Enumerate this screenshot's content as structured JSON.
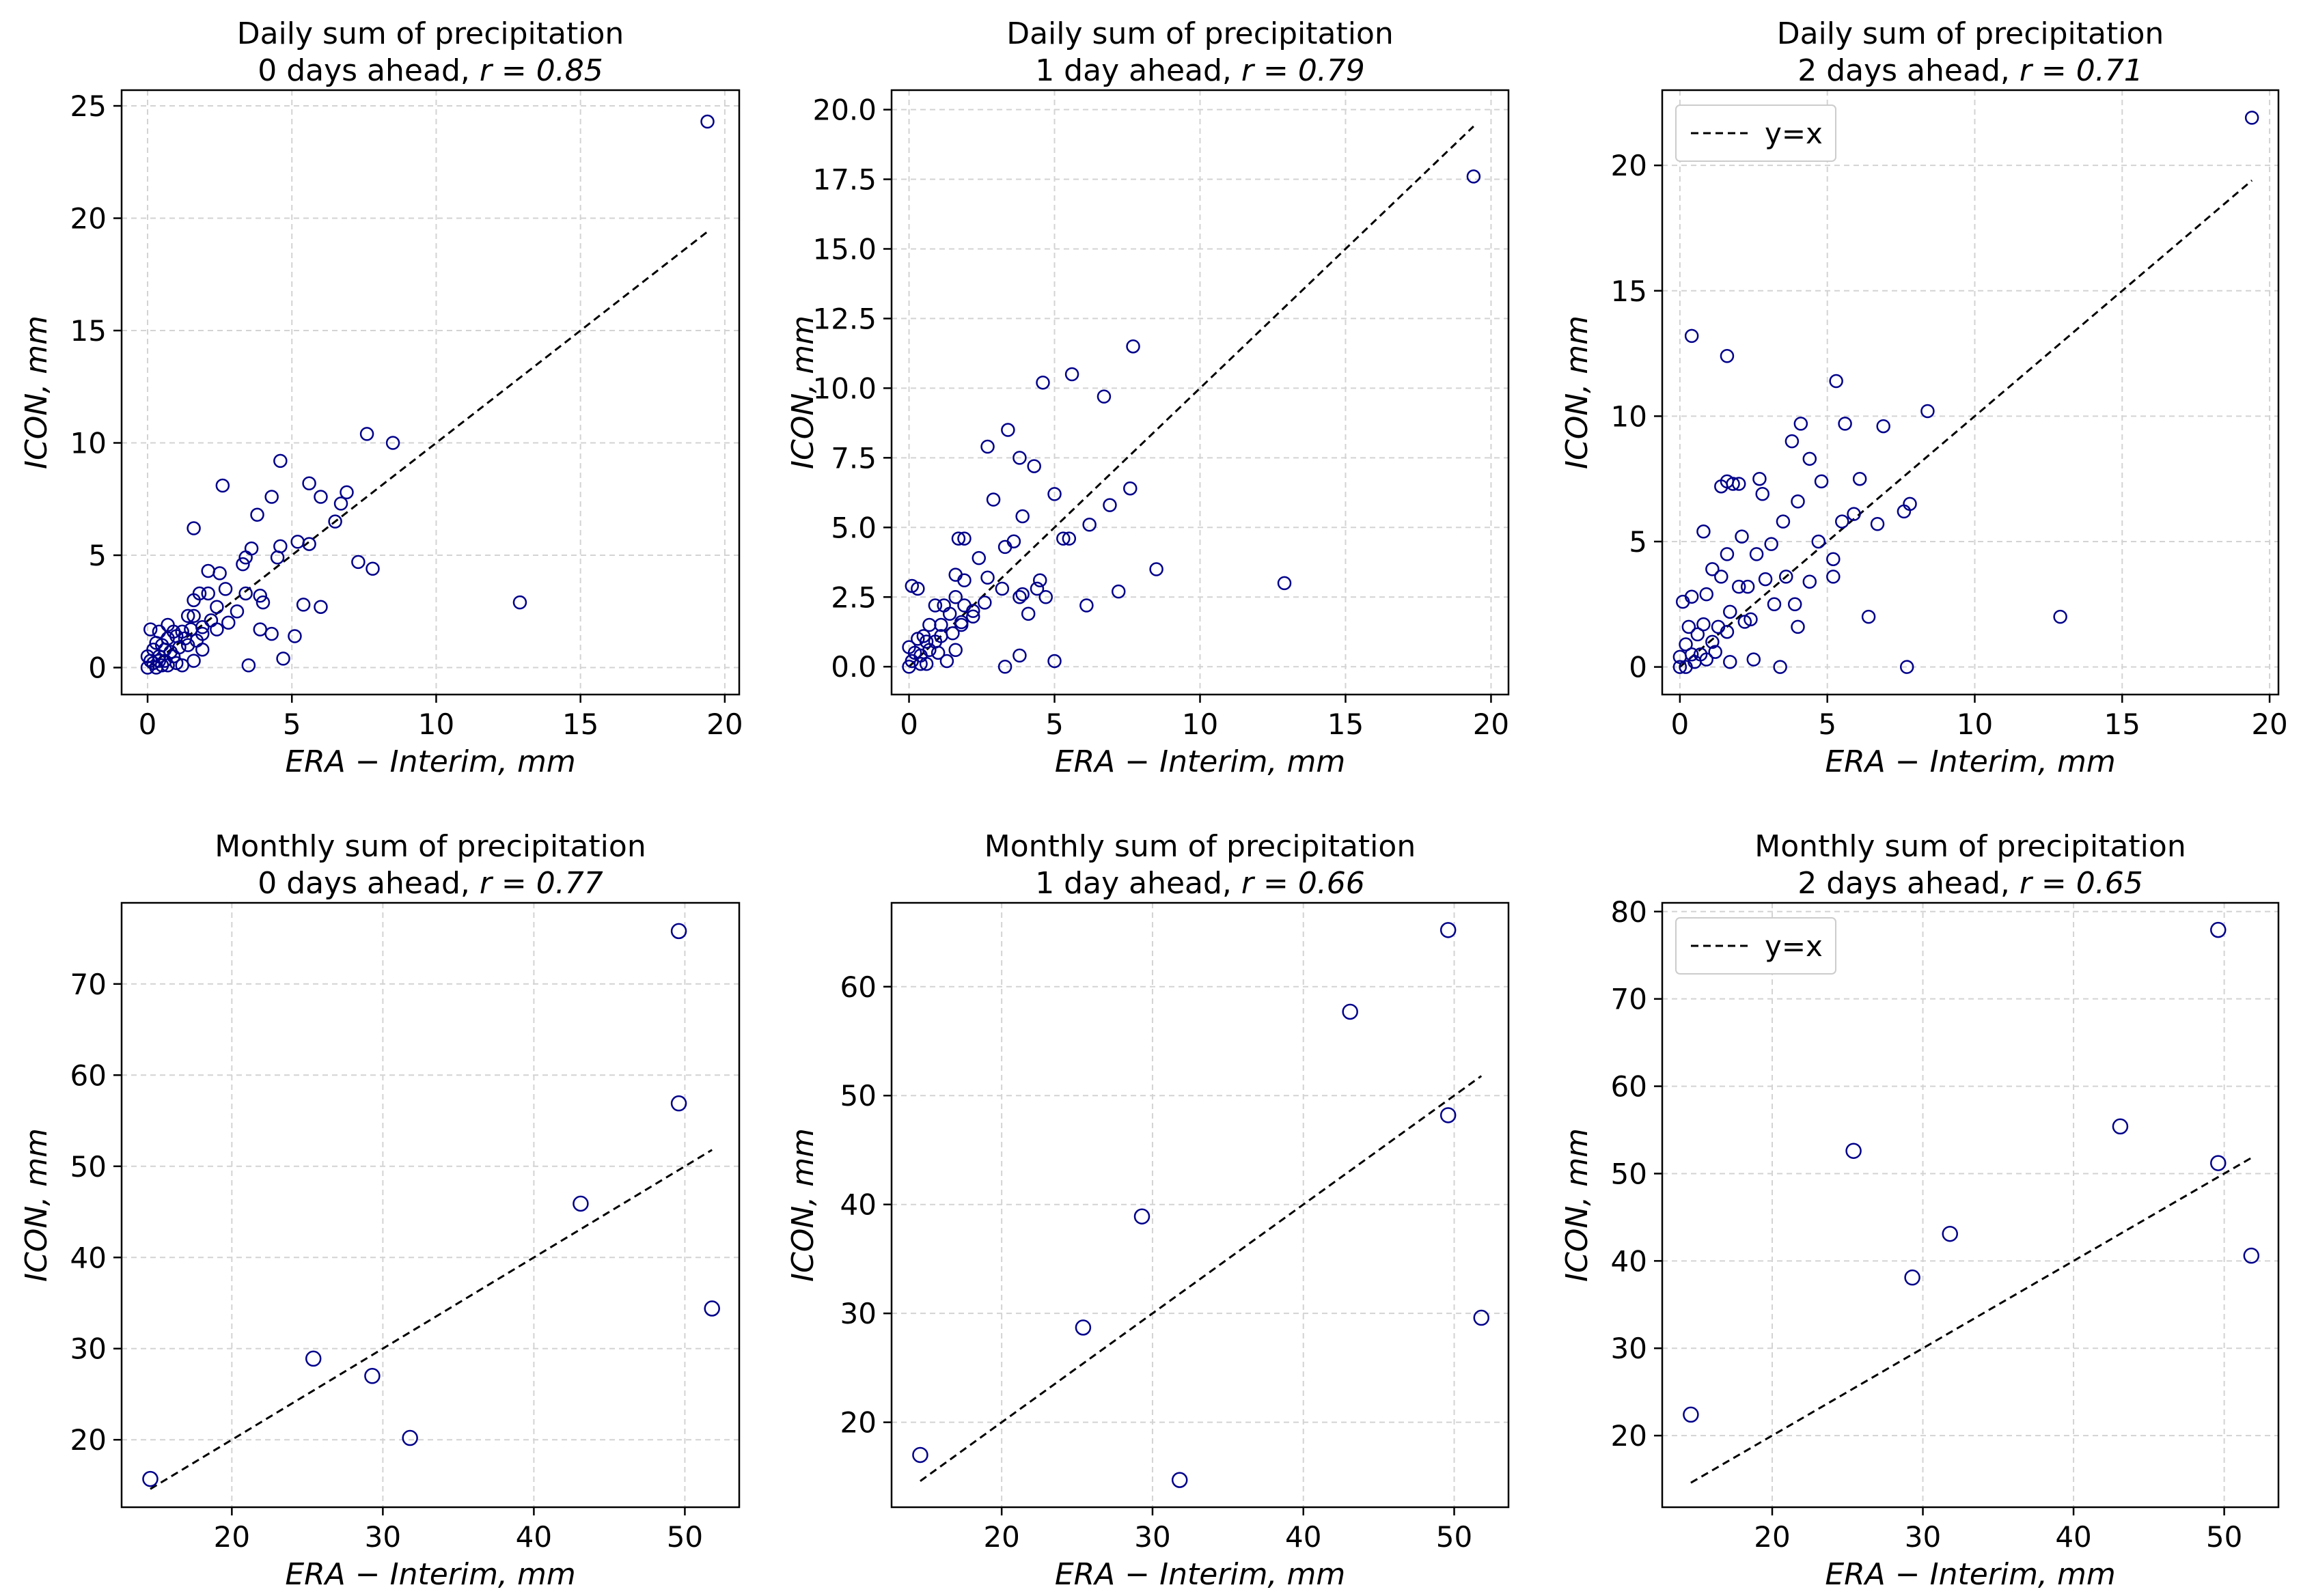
{
  "chart_data": [
    {
      "type": "scatter",
      "title": "Daily sum of precipitation",
      "subtitle": "0 days ahead, r = 0.85",
      "subtitle_prefix": "0 days ahead, ",
      "r_label": "r = 0.85",
      "xlabel": "ERA − Interim, mm",
      "ylabel": "ICON, mm",
      "xlim": [
        -0.9,
        20.5
      ],
      "ylim": [
        -1.2,
        25.7
      ],
      "xticks": [
        0,
        5,
        10,
        15,
        20
      ],
      "xtick_labels": [
        "0",
        "5",
        "10",
        "15",
        "20"
      ],
      "yticks": [
        0,
        5,
        10,
        15,
        20,
        25
      ],
      "ytick_labels": [
        "0",
        "5",
        "10",
        "15",
        "20",
        "25"
      ],
      "grid": true,
      "legend": null,
      "reference_line": {
        "label": "y=x",
        "x": [
          0,
          19.4
        ],
        "y": [
          0,
          19.4
        ]
      },
      "points": [
        [
          19.4,
          24.3
        ],
        [
          12.9,
          2.9
        ],
        [
          8.5,
          10.0
        ],
        [
          7.6,
          10.4
        ],
        [
          7.8,
          4.4
        ],
        [
          7.3,
          4.7
        ],
        [
          6.9,
          7.8
        ],
        [
          6.7,
          7.3
        ],
        [
          6.5,
          6.5
        ],
        [
          6.0,
          7.6
        ],
        [
          6.0,
          2.7
        ],
        [
          5.6,
          8.2
        ],
        [
          5.6,
          5.5
        ],
        [
          5.2,
          5.6
        ],
        [
          5.4,
          2.8
        ],
        [
          5.1,
          1.4
        ],
        [
          4.6,
          9.2
        ],
        [
          4.6,
          5.4
        ],
        [
          4.5,
          4.9
        ],
        [
          4.3,
          7.6
        ],
        [
          4.7,
          0.4
        ],
        [
          4.3,
          1.5
        ],
        [
          4.0,
          2.9
        ],
        [
          3.8,
          6.8
        ],
        [
          3.9,
          1.7
        ],
        [
          3.9,
          3.2
        ],
        [
          3.6,
          5.3
        ],
        [
          3.4,
          4.9
        ],
        [
          3.3,
          4.6
        ],
        [
          3.4,
          3.3
        ],
        [
          3.5,
          0.1
        ],
        [
          3.1,
          2.5
        ],
        [
          2.6,
          8.1
        ],
        [
          2.7,
          3.5
        ],
        [
          2.5,
          4.2
        ],
        [
          2.8,
          2.0
        ],
        [
          2.4,
          2.7
        ],
        [
          2.1,
          4.3
        ],
        [
          2.1,
          3.3
        ],
        [
          1.8,
          3.3
        ],
        [
          2.2,
          2.1
        ],
        [
          2.4,
          1.7
        ],
        [
          1.6,
          6.2
        ],
        [
          1.6,
          3.0
        ],
        [
          1.9,
          1.5
        ],
        [
          1.6,
          2.3
        ],
        [
          1.4,
          2.3
        ],
        [
          1.7,
          1.2
        ],
        [
          1.9,
          0.8
        ],
        [
          1.5,
          1.7
        ],
        [
          1.3,
          1.3
        ],
        [
          1.6,
          0.3
        ],
        [
          1.2,
          1.6
        ],
        [
          1.2,
          0.1
        ],
        [
          1.0,
          1.4
        ],
        [
          1.1,
          0.9
        ],
        [
          0.9,
          1.6
        ],
        [
          0.8,
          0.7
        ],
        [
          1.0,
          0.2
        ],
        [
          0.7,
          1.9
        ],
        [
          0.7,
          1.3
        ],
        [
          0.6,
          0.8
        ],
        [
          0.6,
          0.3
        ],
        [
          0.5,
          1.0
        ],
        [
          0.4,
          1.6
        ],
        [
          0.3,
          1.1
        ],
        [
          0.4,
          0.5
        ],
        [
          0.2,
          0.8
        ],
        [
          0.2,
          0.2
        ],
        [
          0.1,
          1.7
        ],
        [
          0.0,
          0.5
        ],
        [
          0.0,
          0.0
        ],
        [
          0.3,
          0.0
        ],
        [
          0.5,
          0.1
        ],
        [
          0.7,
          0.1
        ],
        [
          0.1,
          0.3
        ],
        [
          0.4,
          0.3
        ],
        [
          0.9,
          0.5
        ],
        [
          1.4,
          1.0
        ],
        [
          1.9,
          1.8
        ]
      ]
    },
    {
      "type": "scatter",
      "title": "Daily sum of precipitation",
      "subtitle": "1 day ahead, r = 0.79",
      "subtitle_prefix": "1 day ahead, ",
      "r_label": "r = 0.79",
      "xlabel": "ERA − Interim, mm",
      "ylabel": "ICON, mm",
      "xlim": [
        -0.6,
        20.6
      ],
      "ylim": [
        -1.0,
        20.7
      ],
      "xticks": [
        0,
        5,
        10,
        15,
        20
      ],
      "xtick_labels": [
        "0",
        "5",
        "10",
        "15",
        "20"
      ],
      "yticks": [
        0,
        2.5,
        5,
        7.5,
        10,
        12.5,
        15,
        17.5,
        20
      ],
      "ytick_labels": [
        "0.0",
        "2.5",
        "5.0",
        "7.5",
        "10.0",
        "12.5",
        "15.0",
        "17.5",
        "20.0"
      ],
      "grid": true,
      "legend": null,
      "reference_line": {
        "label": "y=x",
        "x": [
          0,
          19.4
        ],
        "y": [
          0,
          19.4
        ]
      },
      "points": [
        [
          19.4,
          17.6
        ],
        [
          12.9,
          3.0
        ],
        [
          8.5,
          3.5
        ],
        [
          7.7,
          11.5
        ],
        [
          7.6,
          6.4
        ],
        [
          7.2,
          2.7
        ],
        [
          6.9,
          5.8
        ],
        [
          6.7,
          9.7
        ],
        [
          6.2,
          5.1
        ],
        [
          6.1,
          2.2
        ],
        [
          5.6,
          10.5
        ],
        [
          5.5,
          4.6
        ],
        [
          5.3,
          4.6
        ],
        [
          5.0,
          6.2
        ],
        [
          5.0,
          0.2
        ],
        [
          4.6,
          10.2
        ],
        [
          4.7,
          2.5
        ],
        [
          4.5,
          3.1
        ],
        [
          4.4,
          2.8
        ],
        [
          4.3,
          7.2
        ],
        [
          4.1,
          1.9
        ],
        [
          3.9,
          5.4
        ],
        [
          3.8,
          7.5
        ],
        [
          3.9,
          2.6
        ],
        [
          3.8,
          2.5
        ],
        [
          3.8,
          0.4
        ],
        [
          3.4,
          8.5
        ],
        [
          3.6,
          4.5
        ],
        [
          3.3,
          4.3
        ],
        [
          3.2,
          2.8
        ],
        [
          3.3,
          0.0
        ],
        [
          2.9,
          6.0
        ],
        [
          2.7,
          7.9
        ],
        [
          2.7,
          3.2
        ],
        [
          2.6,
          2.3
        ],
        [
          2.4,
          3.9
        ],
        [
          2.2,
          2.0
        ],
        [
          1.9,
          4.6
        ],
        [
          1.7,
          4.6
        ],
        [
          1.9,
          3.1
        ],
        [
          1.9,
          2.2
        ],
        [
          1.6,
          3.3
        ],
        [
          1.6,
          2.5
        ],
        [
          1.8,
          1.6
        ],
        [
          1.6,
          0.6
        ],
        [
          1.4,
          1.9
        ],
        [
          1.5,
          1.2
        ],
        [
          1.3,
          0.2
        ],
        [
          1.2,
          2.2
        ],
        [
          1.1,
          1.1
        ],
        [
          1.0,
          0.5
        ],
        [
          0.9,
          2.2
        ],
        [
          0.9,
          0.9
        ],
        [
          0.7,
          1.5
        ],
        [
          0.7,
          0.6
        ],
        [
          0.6,
          0.1
        ],
        [
          0.5,
          1.1
        ],
        [
          0.4,
          0.4
        ],
        [
          0.3,
          2.8
        ],
        [
          0.3,
          1.0
        ],
        [
          0.2,
          0.5
        ],
        [
          0.1,
          2.9
        ],
        [
          0.1,
          0.2
        ],
        [
          0.0,
          0.7
        ],
        [
          0.0,
          0.0
        ],
        [
          0.4,
          0.1
        ],
        [
          0.6,
          0.9
        ],
        [
          1.1,
          1.5
        ],
        [
          1.8,
          1.5
        ],
        [
          2.2,
          1.8
        ]
      ]
    },
    {
      "type": "scatter",
      "title": "Daily sum of precipitation",
      "subtitle": "2 days ahead, r = 0.71",
      "subtitle_prefix": "2 days ahead, ",
      "r_label": "r = 0.71",
      "xlabel": "ERA − Interim, mm",
      "ylabel": "ICON, mm",
      "xlim": [
        -0.6,
        20.3
      ],
      "ylim": [
        -1.1,
        23.0
      ],
      "xticks": [
        0,
        5,
        10,
        15,
        20
      ],
      "xtick_labels": [
        "0",
        "5",
        "10",
        "15",
        "20"
      ],
      "yticks": [
        0,
        5,
        10,
        15,
        20
      ],
      "ytick_labels": [
        "0",
        "5",
        "10",
        "15",
        "20"
      ],
      "grid": true,
      "legend": {
        "label": "y=x",
        "position": "upper-left"
      },
      "reference_line": {
        "label": "y=x",
        "x": [
          0,
          19.4
        ],
        "y": [
          0,
          19.4
        ]
      },
      "points": [
        [
          19.4,
          21.9
        ],
        [
          12.9,
          2.0
        ],
        [
          8.4,
          10.2
        ],
        [
          7.8,
          6.5
        ],
        [
          7.6,
          6.2
        ],
        [
          7.7,
          0.0
        ],
        [
          6.9,
          9.6
        ],
        [
          6.7,
          5.7
        ],
        [
          6.4,
          2.0
        ],
        [
          6.1,
          7.5
        ],
        [
          5.9,
          6.1
        ],
        [
          5.6,
          9.7
        ],
        [
          5.5,
          5.8
        ],
        [
          5.3,
          11.4
        ],
        [
          5.2,
          4.3
        ],
        [
          5.2,
          3.6
        ],
        [
          4.8,
          7.4
        ],
        [
          4.7,
          5.0
        ],
        [
          4.4,
          8.3
        ],
        [
          4.4,
          3.4
        ],
        [
          4.1,
          9.7
        ],
        [
          4.0,
          6.6
        ],
        [
          3.8,
          9.0
        ],
        [
          3.9,
          2.5
        ],
        [
          4.0,
          1.6
        ],
        [
          3.5,
          5.8
        ],
        [
          3.6,
          3.6
        ],
        [
          3.4,
          0.0
        ],
        [
          3.2,
          2.5
        ],
        [
          3.1,
          4.9
        ],
        [
          2.9,
          3.5
        ],
        [
          2.7,
          7.5
        ],
        [
          2.8,
          6.9
        ],
        [
          2.6,
          4.5
        ],
        [
          2.3,
          3.2
        ],
        [
          2.4,
          1.9
        ],
        [
          2.5,
          0.3
        ],
        [
          2.0,
          7.3
        ],
        [
          2.1,
          5.2
        ],
        [
          2.0,
          3.2
        ],
        [
          1.8,
          7.3
        ],
        [
          1.6,
          12.4
        ],
        [
          1.6,
          7.4
        ],
        [
          1.6,
          4.5
        ],
        [
          1.7,
          2.2
        ],
        [
          1.7,
          0.2
        ],
        [
          1.4,
          7.2
        ],
        [
          1.4,
          3.6
        ],
        [
          1.3,
          1.6
        ],
        [
          1.1,
          3.9
        ],
        [
          1.1,
          1.0
        ],
        [
          0.9,
          2.9
        ],
        [
          0.8,
          5.4
        ],
        [
          0.8,
          1.7
        ],
        [
          0.7,
          0.5
        ],
        [
          0.6,
          1.3
        ],
        [
          0.4,
          13.2
        ],
        [
          0.4,
          2.8
        ],
        [
          0.4,
          0.5
        ],
        [
          0.3,
          1.6
        ],
        [
          0.2,
          0.9
        ],
        [
          0.1,
          2.6
        ],
        [
          0.0,
          0.4
        ],
        [
          0.0,
          0.0
        ],
        [
          0.2,
          0.0
        ],
        [
          0.5,
          0.2
        ],
        [
          0.9,
          0.3
        ],
        [
          1.2,
          0.6
        ],
        [
          1.6,
          1.4
        ],
        [
          2.2,
          1.8
        ]
      ]
    },
    {
      "type": "scatter",
      "title": "Monthly sum of precipitation",
      "subtitle": "0 days ahead, r = 0.77",
      "subtitle_prefix": "0 days ahead, ",
      "r_label": "r = 0.77",
      "xlabel": "ERA − Interim, mm",
      "ylabel": "ICON, mm",
      "xlim": [
        12.7,
        53.6
      ],
      "ylim": [
        12.6,
        78.9
      ],
      "xticks": [
        20,
        30,
        40,
        50
      ],
      "xtick_labels": [
        "20",
        "30",
        "40",
        "50"
      ],
      "yticks": [
        20,
        30,
        40,
        50,
        60,
        70
      ],
      "ytick_labels": [
        "20",
        "30",
        "40",
        "50",
        "60",
        "70"
      ],
      "grid": true,
      "legend": null,
      "reference_line": {
        "label": "y=x",
        "x": [
          14.6,
          51.8
        ],
        "y": [
          14.6,
          51.8
        ]
      },
      "points": [
        [
          14.6,
          15.7
        ],
        [
          25.4,
          28.9
        ],
        [
          29.3,
          27.0
        ],
        [
          31.8,
          20.2
        ],
        [
          43.1,
          45.9
        ],
        [
          49.6,
          75.8
        ],
        [
          49.6,
          56.9
        ],
        [
          51.8,
          34.4
        ]
      ]
    },
    {
      "type": "scatter",
      "title": "Monthly sum of precipitation",
      "subtitle": "1 day ahead, r = 0.66",
      "subtitle_prefix": "1 day ahead, ",
      "r_label": "r = 0.66",
      "xlabel": "ERA − Interim, mm",
      "ylabel": "ICON, mm",
      "xlim": [
        12.7,
        53.6
      ],
      "ylim": [
        12.2,
        67.7
      ],
      "xticks": [
        20,
        30,
        40,
        50
      ],
      "xtick_labels": [
        "20",
        "30",
        "40",
        "50"
      ],
      "yticks": [
        20,
        30,
        40,
        50,
        60
      ],
      "ytick_labels": [
        "20",
        "30",
        "40",
        "50",
        "60"
      ],
      "grid": true,
      "legend": null,
      "reference_line": {
        "label": "y=x",
        "x": [
          14.6,
          51.8
        ],
        "y": [
          14.6,
          51.8
        ]
      },
      "points": [
        [
          14.6,
          17.0
        ],
        [
          25.4,
          28.7
        ],
        [
          29.3,
          38.9
        ],
        [
          31.8,
          14.7
        ],
        [
          43.1,
          57.7
        ],
        [
          49.6,
          65.2
        ],
        [
          49.6,
          48.2
        ],
        [
          51.8,
          29.6
        ]
      ]
    },
    {
      "type": "scatter",
      "title": "Monthly sum of precipitation",
      "subtitle": "2 days ahead, r = 0.65",
      "subtitle_prefix": "2 days ahead, ",
      "r_label": "r = 0.65",
      "xlabel": "ERA − Interim, mm",
      "ylabel": "ICON, mm",
      "xlim": [
        12.7,
        53.6
      ],
      "ylim": [
        11.8,
        81.0
      ],
      "xticks": [
        20,
        30,
        40,
        50
      ],
      "xtick_labels": [
        "20",
        "30",
        "40",
        "50"
      ],
      "yticks": [
        20,
        30,
        40,
        50,
        60,
        70,
        80
      ],
      "ytick_labels": [
        "20",
        "30",
        "40",
        "50",
        "60",
        "70",
        "80"
      ],
      "grid": true,
      "legend": {
        "label": "y=x",
        "position": "upper-left"
      },
      "reference_line": {
        "label": "y=x",
        "x": [
          14.6,
          51.8
        ],
        "y": [
          14.6,
          51.8
        ]
      },
      "points": [
        [
          14.6,
          22.4
        ],
        [
          25.4,
          52.6
        ],
        [
          29.3,
          38.1
        ],
        [
          31.8,
          43.1
        ],
        [
          43.1,
          55.4
        ],
        [
          49.6,
          77.9
        ],
        [
          49.6,
          51.2
        ],
        [
          51.8,
          40.6
        ]
      ]
    }
  ]
}
